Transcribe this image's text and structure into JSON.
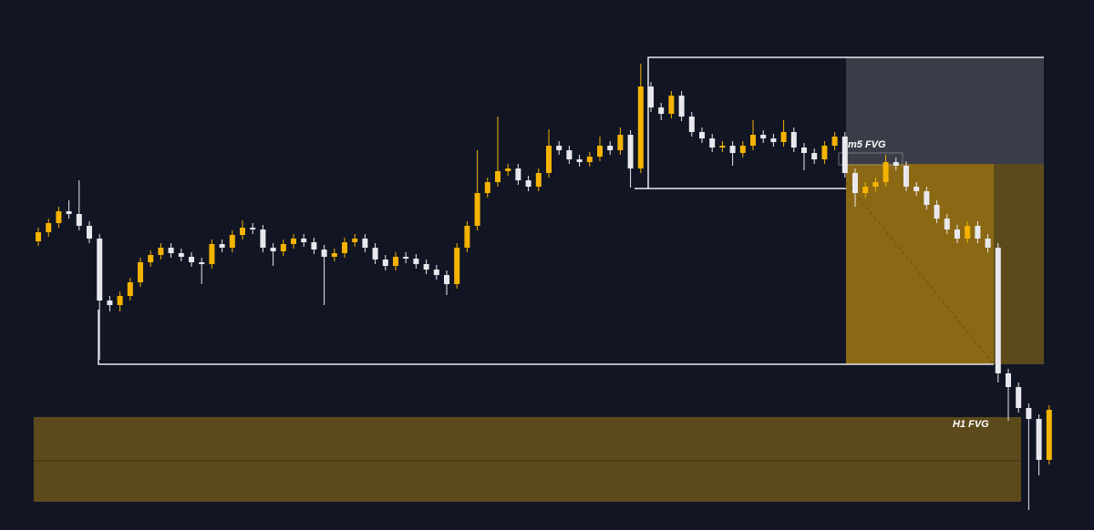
{
  "chart_data": {
    "type": "candlestick",
    "annotations": [
      "m5 FVG",
      "H1 FVG"
    ],
    "up_color": "#f5b300",
    "down_color": "#e8e8ee",
    "ylim": [
      0,
      582
    ],
    "open": [
      317,
      327,
      337,
      350,
      347,
      334,
      320,
      252,
      247,
      257,
      272,
      294,
      302,
      310,
      304,
      300,
      294,
      292,
      314,
      310,
      324,
      332,
      330,
      310,
      306,
      314,
      320,
      316,
      308,
      300,
      304,
      316,
      320,
      310,
      297,
      290,
      300,
      298,
      292,
      286,
      280,
      270,
      310,
      334,
      370,
      382,
      394,
      397,
      384,
      377,
      392,
      422,
      417,
      407,
      404,
      410,
      422,
      417,
      434,
      397,
      487,
      464,
      457,
      477,
      454,
      437,
      430,
      420,
      422,
      414,
      422,
      434,
      430,
      426,
      437,
      420,
      414,
      407,
      422,
      432,
      392,
      370,
      377,
      382,
      404,
      400,
      377,
      372,
      357,
      342,
      330,
      320,
      334,
      320,
      310,
      172,
      157,
      134,
      122,
      77
    ],
    "high": [
      332,
      342,
      355,
      362,
      384,
      339,
      325,
      257,
      262,
      277,
      299,
      307,
      315,
      315,
      309,
      305,
      299,
      319,
      319,
      329,
      340,
      337,
      335,
      315,
      319,
      325,
      325,
      321,
      313,
      309,
      321,
      325,
      325,
      315,
      302,
      305,
      305,
      303,
      297,
      291,
      285,
      315,
      339,
      417,
      387,
      454,
      402,
      402,
      389,
      397,
      440,
      427,
      422,
      412,
      415,
      432,
      427,
      442,
      439,
      512,
      492,
      469,
      482,
      482,
      459,
      442,
      435,
      427,
      427,
      427,
      450,
      439,
      435,
      450,
      442,
      425,
      419,
      427,
      437,
      437,
      397,
      382,
      387,
      412,
      409,
      405,
      382,
      377,
      362,
      347,
      335,
      339,
      339,
      325,
      315,
      177,
      162,
      139,
      127,
      137
    ],
    "low": [
      312,
      322,
      332,
      342,
      329,
      315,
      187,
      240,
      240,
      252,
      267,
      289,
      297,
      299,
      295,
      289,
      270,
      287,
      305,
      305,
      319,
      325,
      305,
      290,
      301,
      309,
      311,
      303,
      247,
      295,
      299,
      311,
      305,
      292,
      285,
      285,
      293,
      287,
      281,
      275,
      258,
      265,
      305,
      329,
      365,
      377,
      389,
      379,
      372,
      372,
      387,
      412,
      402,
      399,
      399,
      405,
      412,
      412,
      376,
      392,
      459,
      450,
      452,
      449,
      432,
      425,
      415,
      415,
      400,
      409,
      417,
      425,
      421,
      421,
      415,
      395,
      402,
      402,
      417,
      387,
      355,
      365,
      372,
      377,
      395,
      372,
      367,
      352,
      337,
      325,
      315,
      315,
      315,
      305,
      162,
      120,
      129,
      22,
      60,
      72
    ],
    "close": [
      327,
      337,
      350,
      347,
      334,
      320,
      252,
      247,
      257,
      272,
      294,
      302,
      310,
      304,
      300,
      294,
      292,
      314,
      310,
      324,
      332,
      330,
      310,
      306,
      314,
      320,
      316,
      308,
      300,
      304,
      316,
      320,
      310,
      297,
      290,
      300,
      298,
      292,
      286,
      280,
      270,
      310,
      334,
      370,
      382,
      394,
      397,
      384,
      377,
      392,
      422,
      417,
      407,
      404,
      410,
      422,
      417,
      434,
      397,
      487,
      464,
      457,
      477,
      454,
      437,
      430,
      420,
      422,
      414,
      422,
      434,
      430,
      426,
      437,
      420,
      414,
      407,
      422,
      432,
      392,
      370,
      377,
      382,
      404,
      400,
      377,
      372,
      357,
      342,
      330,
      320,
      334,
      320,
      310,
      172,
      157,
      134,
      122,
      77,
      132
    ]
  }
}
